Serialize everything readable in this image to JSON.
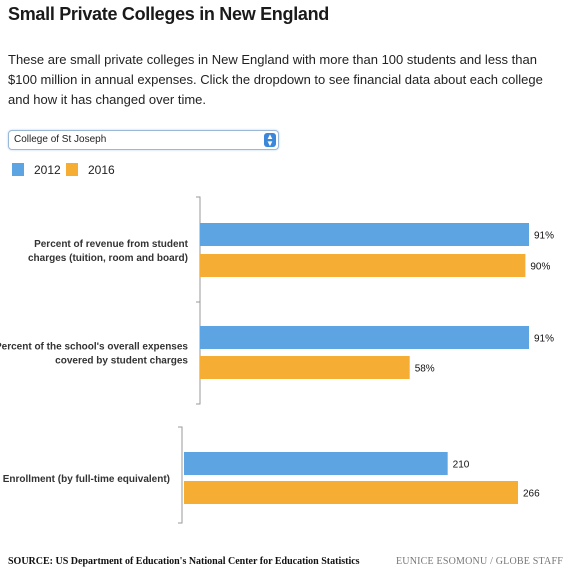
{
  "header": {
    "title": "Small Private Colleges in New England",
    "description": "These are small private colleges in New England with more than 100 students and less than $100 million in annual expenses. Click the dropdown to see financial data about each college and how it has changed over time."
  },
  "dropdown": {
    "selected": "College of St Joseph"
  },
  "footer": {
    "source": "SOURCE: US Department of Education's National Center for Education Statistics",
    "credit": "EUNICE ESOMONU / GLOBE STAFF"
  },
  "chart_data": {
    "type": "bar",
    "orientation": "horizontal",
    "title": "",
    "xlabel": "",
    "ylabel": "",
    "legend_position": "top-left",
    "grid": false,
    "colors": {
      "2012": "#5da5e2",
      "2016": "#f5ad33"
    },
    "series": [
      {
        "name": "2012",
        "color": "#5da5e2"
      },
      {
        "name": "2016",
        "color": "#f5ad33"
      }
    ],
    "groups": [
      {
        "label_lines": [
          "Percent of revenue from student",
          "charges (tuition, room and board)"
        ],
        "unit": "percent",
        "max": 100,
        "values": [
          91,
          90
        ],
        "value_labels": [
          "91%",
          "90%"
        ]
      },
      {
        "label_lines": [
          "Percent of the school's overall expenses",
          "covered by student charges"
        ],
        "unit": "percent",
        "max": 100,
        "values": [
          91,
          58
        ],
        "value_labels": [
          "91%",
          "58%"
        ]
      },
      {
        "label_lines": [
          "Enrollment (by full-time equivalent)"
        ],
        "unit": "students",
        "max": 270,
        "values": [
          210,
          266
        ],
        "value_labels": [
          "210",
          "266"
        ]
      }
    ]
  }
}
